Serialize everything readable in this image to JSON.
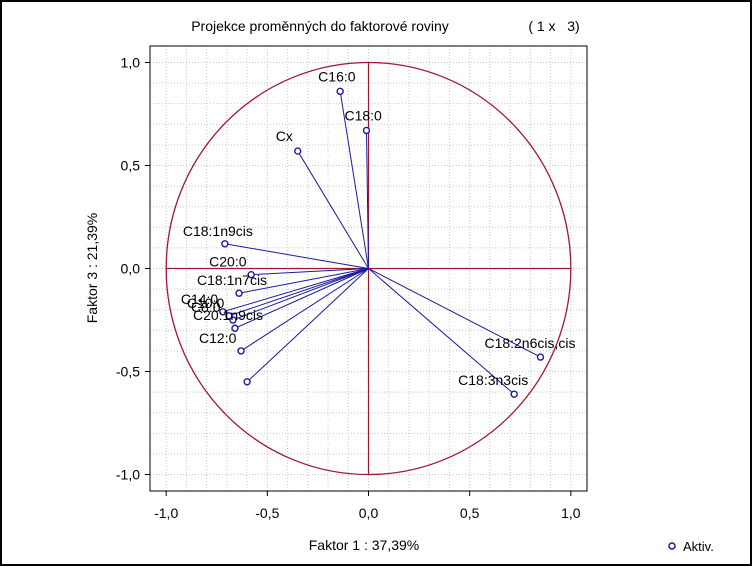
{
  "title": "Projekce proměnných do faktorové roviny",
  "subtitle": "( 1 x   3)",
  "chart_data": {
    "type": "scatter",
    "xlabel": "Faktor 1 : 37,39%",
    "ylabel": "Faktor 3 : 21,39%",
    "xlim": [
      -1.08,
      1.08
    ],
    "ylim": [
      -1.08,
      1.08
    ],
    "x_ticks": [
      -1.0,
      -0.5,
      0.0,
      0.5,
      1.0
    ],
    "y_ticks": [
      -1.0,
      -0.5,
      0.0,
      0.5,
      1.0
    ],
    "x_tick_labels": [
      "-1,0",
      "-0,5",
      "0,0",
      "0,5",
      "1,0"
    ],
    "y_tick_labels": [
      "-1,0",
      "-0,5",
      "0,0",
      "0,5",
      "1,0"
    ],
    "grid": true,
    "unit_circle": true,
    "legend": {
      "label": "Aktiv.",
      "placement": "bottom-right"
    },
    "colors": {
      "circle": "#a01830",
      "axes": "#a01830",
      "vectors": "#1a1aa0",
      "grid": "#c8c8c8"
    },
    "points": [
      {
        "label": "C16:0",
        "x": -0.14,
        "y": 0.86
      },
      {
        "label": "C18:0",
        "x": -0.01,
        "y": 0.67
      },
      {
        "label": "Cx",
        "x": -0.35,
        "y": 0.57
      },
      {
        "label": "C18:1n9cis",
        "x": -0.71,
        "y": 0.12
      },
      {
        "label": "C20:0",
        "x": -0.58,
        "y": -0.03
      },
      {
        "label": "C18:1n7cis",
        "x": -0.64,
        "y": -0.12
      },
      {
        "label": "C14:0",
        "x": -0.72,
        "y": -0.21
      },
      {
        "label": "C10:0",
        "x": -0.69,
        "y": -0.23
      },
      {
        "label": "C8:0",
        "x": -0.67,
        "y": -0.25
      },
      {
        "label": "C20:1n9cis",
        "x": -0.66,
        "y": -0.29
      },
      {
        "label": "C12:0",
        "x": -0.63,
        "y": -0.4
      },
      {
        "label": "",
        "x": -0.6,
        "y": -0.55
      },
      {
        "label": "C18:2n6cis,cis",
        "x": 0.85,
        "y": -0.43
      },
      {
        "label": "C18:3n3cis",
        "x": 0.72,
        "y": -0.61
      }
    ]
  }
}
